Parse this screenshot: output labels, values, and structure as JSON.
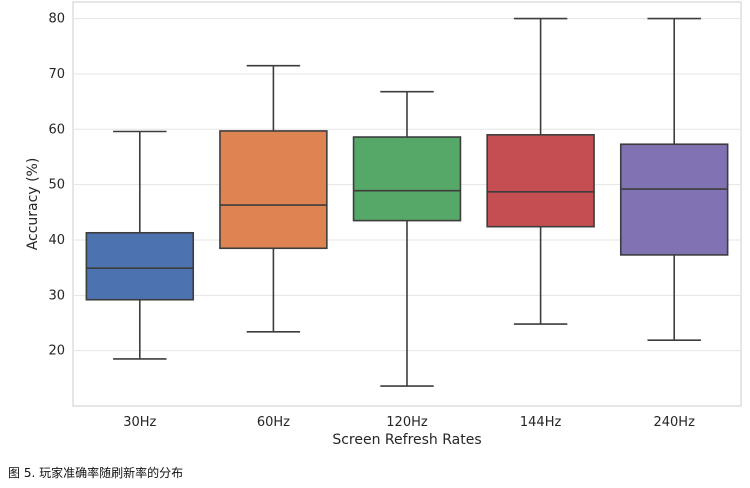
{
  "caption": "图 5. 玩家准确率随刷新率的分布",
  "chart_data": {
    "type": "box",
    "title": "",
    "xlabel": "Screen Refresh Rates",
    "ylabel": "Accuracy (%)",
    "ylim": [
      10,
      83
    ],
    "yticks": [
      20,
      30,
      40,
      50,
      60,
      70,
      80
    ],
    "grid": "horizontal",
    "categories": [
      "30Hz",
      "60Hz",
      "120Hz",
      "144Hz",
      "240Hz"
    ],
    "colors": [
      "#4C72B0",
      "#DD8452",
      "#55A868",
      "#C44E52",
      "#8172B3"
    ],
    "boxes": [
      {
        "category": "30Hz",
        "whisker_low": 18.5,
        "q1": 29.2,
        "median": 34.9,
        "q3": 41.3,
        "whisker_high": 59.6
      },
      {
        "category": "60Hz",
        "whisker_low": 23.4,
        "q1": 38.5,
        "median": 46.3,
        "q3": 59.7,
        "whisker_high": 71.5
      },
      {
        "category": "120Hz",
        "whisker_low": 13.6,
        "q1": 43.5,
        "median": 48.9,
        "q3": 58.6,
        "whisker_high": 66.8
      },
      {
        "category": "144Hz",
        "whisker_low": 24.8,
        "q1": 42.4,
        "median": 48.7,
        "q3": 59.0,
        "whisker_high": 80.0
      },
      {
        "category": "240Hz",
        "whisker_low": 21.9,
        "q1": 37.3,
        "median": 49.2,
        "q3": 57.3,
        "whisker_high": 80.0
      }
    ]
  }
}
